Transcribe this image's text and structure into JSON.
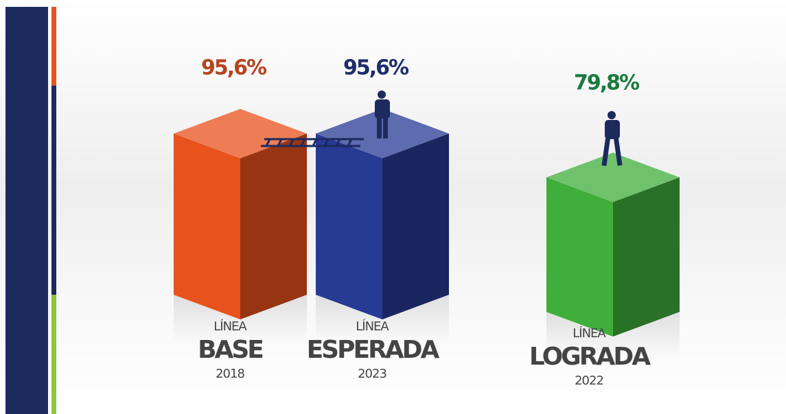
{
  "chart_data": {
    "type": "bar3d",
    "category_kickers": [
      "LÍNEA",
      "LÍNEA",
      "LÍNEA"
    ],
    "categories": [
      "BASE",
      "ESPERADA",
      "LOGRADA"
    ],
    "years": [
      "2018",
      "2023",
      "2022"
    ],
    "values": [
      95.6,
      95.6,
      79.8
    ],
    "value_labels": [
      "95,6%",
      "95,6%",
      "79,8%"
    ],
    "colors": [
      "#e8521c",
      "#273a94",
      "#3fae3a"
    ],
    "label_colors": [
      "#b5441f",
      "#1f2d6b",
      "#1b7a3e"
    ]
  }
}
